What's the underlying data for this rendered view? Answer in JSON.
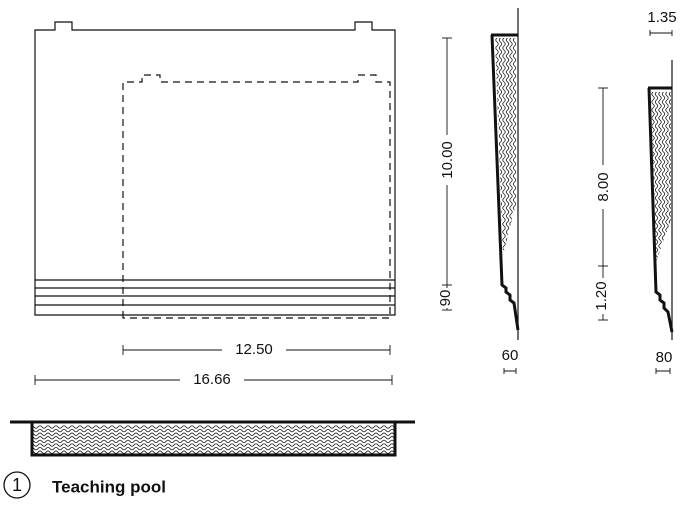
{
  "dimensions": {
    "plan_height": "10.00",
    "plan_step": "90",
    "plan_inner_width": "12.50",
    "plan_total_width": "16.66",
    "section_a_bottom": "60",
    "section_b_top": "1.35",
    "section_b_depth": "8.00",
    "section_b_step": "1.20",
    "section_b_bottom": "80"
  },
  "caption": {
    "number": "1",
    "title": "Teaching pool"
  }
}
